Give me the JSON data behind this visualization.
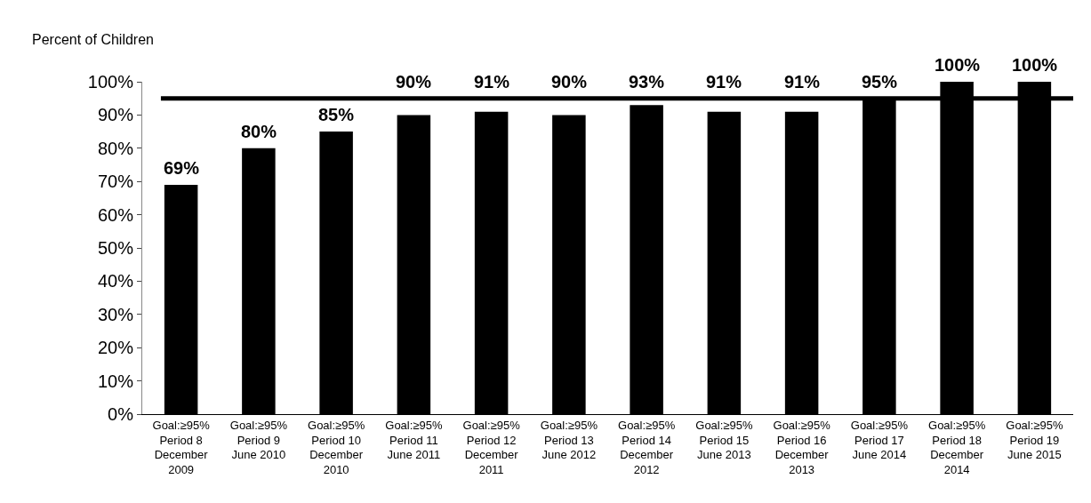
{
  "chart_data": {
    "type": "bar",
    "ylabel": "Percent of Children",
    "categories": [
      "Goal:≥95%\nPeriod 8\nDecember\n2009",
      "Goal:≥95%\nPeriod 9\nJune 2010",
      "Goal:≥95%\nPeriod 10\nDecember\n2010",
      "Goal:≥95%\nPeriod 11\nJune 2011",
      "Goal:≥95%\nPeriod 12\nDecember\n2011",
      "Goal:≥95%\nPeriod 13\nJune 2012",
      "Goal:≥95%\nPeriod 14\nDecember\n2012",
      "Goal:≥95%\nPeriod 15\nJune 2013",
      "Goal:≥95%\nPeriod 16\nDecember\n2013",
      "Goal:≥95%\nPeriod 17\nJune 2014",
      "Goal:≥95%\nPeriod 18\nDecember\n2014",
      "Goal:≥95%\nPeriod 19\nJune 2015"
    ],
    "values": [
      69,
      80,
      85,
      90,
      91,
      90,
      93,
      91,
      91,
      95,
      100,
      100
    ],
    "value_labels": [
      "69%",
      "80%",
      "85%",
      "90%",
      "91%",
      "90%",
      "93%",
      "91%",
      "91%",
      "95%",
      "100%",
      "100%"
    ],
    "color": "#000000",
    "ylim": [
      0,
      100
    ],
    "yticks": [
      {
        "value": 0,
        "label": "0%"
      },
      {
        "value": 10,
        "label": "10%"
      },
      {
        "value": 20,
        "label": "20%"
      },
      {
        "value": 30,
        "label": "30%"
      },
      {
        "value": 40,
        "label": "40%"
      },
      {
        "value": 50,
        "label": "50%"
      },
      {
        "value": 60,
        "label": "60%"
      },
      {
        "value": 70,
        "label": "70%"
      },
      {
        "value": 80,
        "label": "80%"
      },
      {
        "value": 90,
        "label": "90%"
      },
      {
        "value": 100,
        "label": "100%"
      }
    ],
    "ref_lines": [
      {
        "axis": "y",
        "value": 95,
        "color": "#000000"
      }
    ],
    "legend": false
  }
}
